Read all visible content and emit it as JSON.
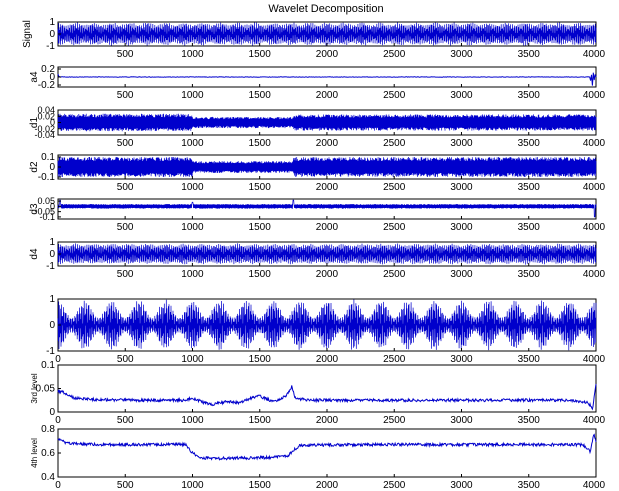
{
  "figure": {
    "title": "Wavelet Decomposition",
    "line_color": "#0000cc",
    "axes_color": "#000000",
    "background": "#ffffff"
  },
  "chart_data": [
    {
      "type": "line",
      "name": "signal",
      "ylabel": "Signal",
      "xlim": [
        1,
        4000
      ],
      "ylim": [
        -1,
        1
      ],
      "yticks": [
        "1",
        "0",
        "-1"
      ],
      "xticks": [
        500,
        1000,
        1500,
        2000,
        2500,
        3000,
        3500,
        4000
      ],
      "description": "dense oscillation filling the full range",
      "series": [
        {
          "kind": "carrier",
          "amplitude": 1.0,
          "period_samples": 28,
          "modulation": 0.1
        }
      ]
    },
    {
      "type": "line",
      "name": "a4",
      "ylabel": "a4",
      "xlim": [
        1,
        4000
      ],
      "ylim": [
        -0.25,
        0.25
      ],
      "yticks": [
        "0.2",
        "0",
        "-0.2"
      ],
      "xticks": [
        500,
        1000,
        1500,
        2000,
        2500,
        3000,
        3500,
        4000
      ],
      "series": [
        {
          "kind": "flat",
          "baseline": 0.0,
          "noise": 0.005,
          "edge_spike": 0.22
        }
      ]
    },
    {
      "type": "line",
      "name": "d1",
      "ylabel": "d1",
      "xlim": [
        1,
        4000
      ],
      "ylim": [
        -0.04,
        0.04
      ],
      "yticks": [
        "0.04",
        "0.02",
        "0",
        "-0.02",
        "-0.04"
      ],
      "xticks": [
        500,
        1000,
        1500,
        2000,
        2500,
        3000,
        3500,
        4000
      ],
      "series": [
        {
          "kind": "noise_band",
          "amplitude": 0.022,
          "segments": [
            [
              1,
              1000,
              0.028
            ],
            [
              1000,
              1750,
              0.018
            ],
            [
              1750,
              4000,
              0.026
            ]
          ]
        }
      ]
    },
    {
      "type": "line",
      "name": "d2",
      "ylabel": "d2",
      "xlim": [
        1,
        4000
      ],
      "ylim": [
        -0.12,
        0.12
      ],
      "yticks": [
        "0.1",
        "0",
        "-0.1"
      ],
      "xticks": [
        500,
        1000,
        1500,
        2000,
        2500,
        3000,
        3500,
        4000
      ],
      "series": [
        {
          "kind": "noise_band",
          "segments": [
            [
              1,
              1000,
              0.1
            ],
            [
              1000,
              1750,
              0.06
            ],
            [
              1750,
              4000,
              0.1
            ]
          ]
        }
      ]
    },
    {
      "type": "line",
      "name": "d3",
      "ylabel": "d3",
      "xlim": [
        1,
        4000
      ],
      "ylim": [
        -0.12,
        0.07
      ],
      "yticks": [
        "0.05",
        "0",
        "-0.05",
        "-0.1"
      ],
      "xticks": [
        500,
        1000,
        1500,
        2000,
        2500,
        3000,
        3500,
        4000
      ],
      "series": [
        {
          "kind": "noise_band",
          "segments": [
            [
              1,
              4000,
              0.022
            ]
          ],
          "spikes": [
            [
              15,
              0.06
            ],
            [
              1000,
              0.04
            ],
            [
              1750,
              0.06
            ],
            [
              3990,
              -0.1
            ]
          ]
        }
      ]
    },
    {
      "type": "line",
      "name": "d4",
      "ylabel": "d4",
      "xlim": [
        1,
        4000
      ],
      "ylim": [
        -1,
        1
      ],
      "yticks": [
        "1",
        "0",
        "-1"
      ],
      "xticks": [
        500,
        1000,
        1500,
        2000,
        2500,
        3000,
        3500,
        4000
      ],
      "series": [
        {
          "kind": "carrier",
          "amplitude": 0.9,
          "period_samples": 28,
          "modulation": 0.08
        }
      ]
    },
    {
      "type": "line",
      "name": "reconstruction",
      "ylabel": "",
      "xlim": [
        0,
        4000
      ],
      "ylim": [
        -1,
        1
      ],
      "yticks": [
        "1",
        "0",
        "-1"
      ],
      "xticks": [
        0,
        500,
        1000,
        1500,
        2000,
        2500,
        3000,
        3500,
        4000
      ],
      "series": [
        {
          "kind": "carrier",
          "amplitude": 1.0,
          "period_samples": 34,
          "modulation": 0.35,
          "modulation_cycles": 20
        }
      ]
    },
    {
      "type": "line",
      "name": "3rd-level",
      "ylabel": "3rd level",
      "xlim": [
        0,
        4000
      ],
      "ylim": [
        0,
        0.1
      ],
      "yticks": [
        "0.1",
        "0.05",
        "0"
      ],
      "xticks": [
        0,
        500,
        1000,
        1500,
        2000,
        2500,
        3000,
        3500,
        4000
      ],
      "series": [
        {
          "kind": "envelope",
          "points": [
            [
              0,
              0.045
            ],
            [
              40,
              0.042
            ],
            [
              120,
              0.03
            ],
            [
              300,
              0.026
            ],
            [
              600,
              0.025
            ],
            [
              950,
              0.025
            ],
            [
              1000,
              0.03
            ],
            [
              1080,
              0.02
            ],
            [
              1150,
              0.016
            ],
            [
              1250,
              0.022
            ],
            [
              1350,
              0.02
            ],
            [
              1420,
              0.028
            ],
            [
              1500,
              0.034
            ],
            [
              1560,
              0.026
            ],
            [
              1620,
              0.022
            ],
            [
              1700,
              0.035
            ],
            [
              1740,
              0.055
            ],
            [
              1760,
              0.03
            ],
            [
              1850,
              0.025
            ],
            [
              2500,
              0.025
            ],
            [
              3000,
              0.025
            ],
            [
              3800,
              0.025
            ],
            [
              3940,
              0.02
            ],
            [
              3975,
              0.008
            ],
            [
              3990,
              0.04
            ],
            [
              4000,
              0.06
            ]
          ],
          "ripple": 0.003
        }
      ]
    },
    {
      "type": "line",
      "name": "4th-level",
      "ylabel": "4th level",
      "xlim": [
        0,
        4000
      ],
      "ylim": [
        0.4,
        0.8
      ],
      "yticks": [
        "0.8",
        "0.6",
        "0.4"
      ],
      "xticks": [
        0,
        500,
        1000,
        1500,
        2000,
        2500,
        3000,
        3500,
        4000
      ],
      "series": [
        {
          "kind": "envelope",
          "points": [
            [
              0,
              0.72
            ],
            [
              60,
              0.68
            ],
            [
              300,
              0.67
            ],
            [
              950,
              0.67
            ],
            [
              1000,
              0.6
            ],
            [
              1050,
              0.56
            ],
            [
              1200,
              0.555
            ],
            [
              1500,
              0.56
            ],
            [
              1700,
              0.57
            ],
            [
              1750,
              0.62
            ],
            [
              1800,
              0.665
            ],
            [
              2500,
              0.67
            ],
            [
              3500,
              0.67
            ],
            [
              3900,
              0.67
            ],
            [
              3960,
              0.61
            ],
            [
              3985,
              0.77
            ],
            [
              4000,
              0.68
            ]
          ],
          "ripple": 0.012
        }
      ]
    }
  ]
}
